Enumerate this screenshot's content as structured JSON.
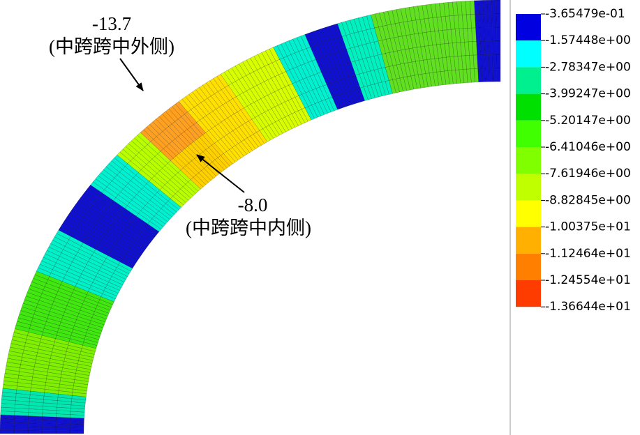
{
  "legend": {
    "labels": [
      "-3.65479e-01",
      "-1.57448e+00",
      "-2.78347e+00",
      "-3.99247e+00",
      "-5.20147e+00",
      "-6.41046e+00",
      "-7.61946e+00",
      "-8.82845e+00",
      "-1.00375e+01",
      "-1.12464e+01",
      "-1.24554e+01",
      "-1.36644e+01"
    ],
    "colors": [
      "#0000e0",
      "#00ffff",
      "#00f090",
      "#00e000",
      "#40ff00",
      "#80ff00",
      "#c0ff00",
      "#ffff00",
      "#ffb000",
      "#ff8000",
      "#ff3c00"
    ]
  },
  "annotations": [
    {
      "value": "-13.7",
      "location": "(中跨跨中外侧)"
    },
    {
      "value": "-8.0",
      "location": "(中跨跨中内侧)"
    }
  ]
}
